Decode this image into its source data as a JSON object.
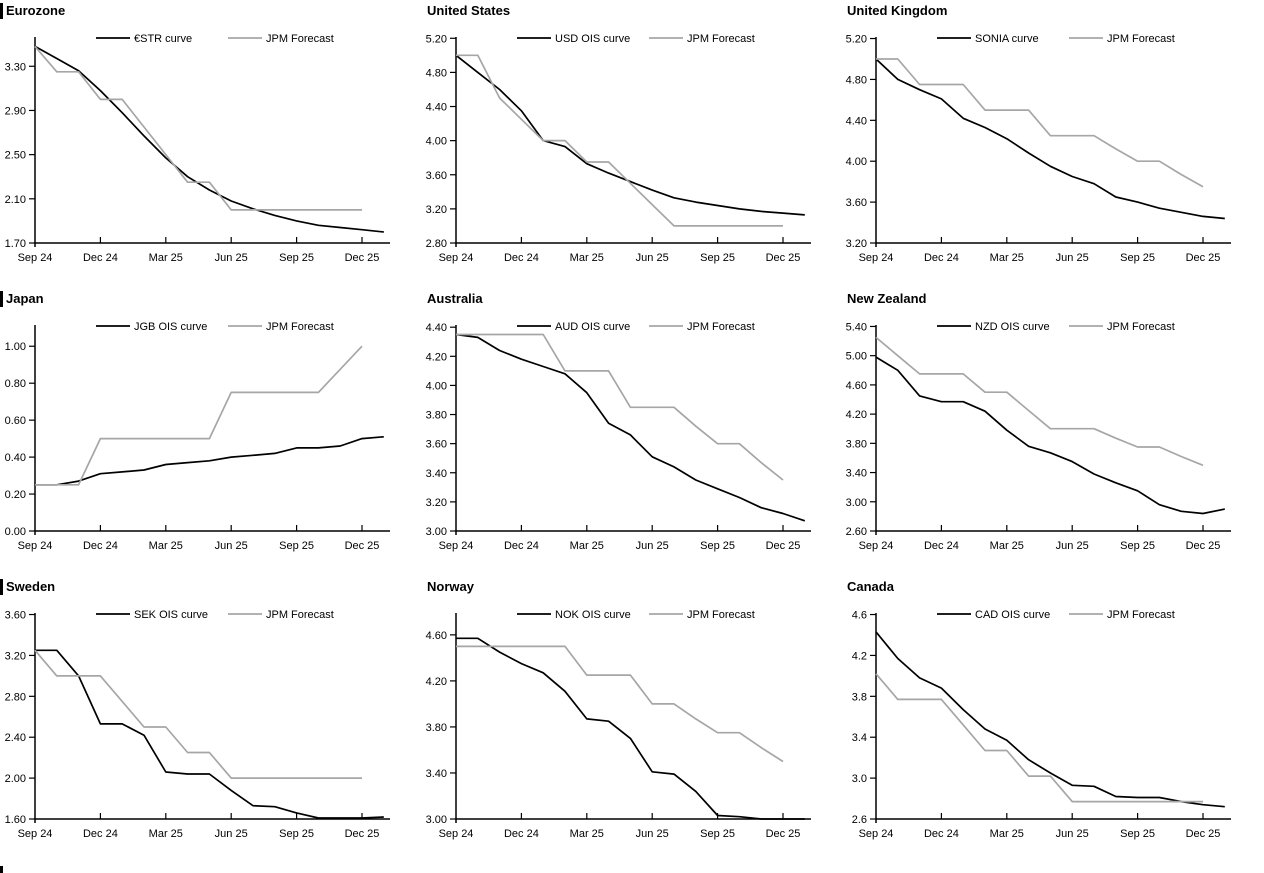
{
  "colors": {
    "market_curve": "#000000",
    "forecast": "#a6a6a6",
    "axis": "#000000"
  },
  "x_axis": {
    "tick_labels": [
      "Sep 24",
      "Dec 24",
      "Mar 25",
      "Jun 25",
      "Sep 25",
      "Dec 25"
    ],
    "tick_positions": [
      0,
      3,
      6,
      9,
      12,
      15
    ],
    "frequency": "monthly"
  },
  "chart_data": [
    {
      "type": "line",
      "title": "Eurozone",
      "section_bar": true,
      "x_tick_labels": [
        "Sep 24",
        "Dec 24",
        "Mar 25",
        "Jun 25",
        "Sep 25",
        "Dec 25"
      ],
      "x_tick_positions": [
        0,
        3,
        6,
        9,
        12,
        15
      ],
      "ylim": [
        1.7,
        3.565
      ],
      "ytick_values": [
        1.7,
        2.1,
        2.5,
        2.9,
        3.3
      ],
      "ytick_labels": [
        "1.70",
        "2.10",
        "2.50",
        "2.90",
        "3.30"
      ],
      "legend_position": "top",
      "series": [
        {
          "name": "€STR curve",
          "color": "#000000",
          "x_start_month": 0,
          "values": [
            3.48,
            3.37,
            3.26,
            3.08,
            2.88,
            2.67,
            2.47,
            2.3,
            2.18,
            2.08,
            2.01,
            1.95,
            1.9,
            1.86,
            1.84,
            1.82,
            1.8
          ]
        },
        {
          "name": "JPM Forecast",
          "color": "#a6a6a6",
          "x_start_month": 0,
          "values": [
            3.48,
            3.25,
            3.25,
            3.0,
            3.0,
            2.75,
            2.5,
            2.25,
            2.25,
            2.0,
            2.0,
            2.0,
            2.0,
            2.0,
            2.0,
            2.0
          ]
        }
      ]
    },
    {
      "type": "line",
      "title": "United States",
      "section_bar": false,
      "x_tick_labels": [
        "Sep 24",
        "Dec 24",
        "Mar 25",
        "Jun 25",
        "Sep 25",
        "Dec 25"
      ],
      "x_tick_positions": [
        0,
        3,
        6,
        9,
        12,
        15
      ],
      "ylim": [
        2.8,
        5.215
      ],
      "ytick_values": [
        2.8,
        3.2,
        3.6,
        4.0,
        4.4,
        4.8,
        5.2
      ],
      "ytick_labels": [
        "2.80",
        "3.20",
        "3.60",
        "4.00",
        "4.40",
        "4.80",
        "5.20"
      ],
      "legend_position": "top",
      "series": [
        {
          "name": "USD OIS curve",
          "color": "#000000",
          "x_start_month": 0,
          "values": [
            5.0,
            4.8,
            4.6,
            4.35,
            4.0,
            3.93,
            3.73,
            3.62,
            3.52,
            3.42,
            3.33,
            3.28,
            3.24,
            3.2,
            3.17,
            3.15,
            3.13
          ]
        },
        {
          "name": "JPM Forecast",
          "color": "#a6a6a6",
          "x_start_month": 0,
          "values": [
            5.0,
            5.0,
            4.5,
            4.25,
            4.0,
            4.0,
            3.75,
            3.75,
            3.5,
            3.25,
            3.0,
            3.0,
            3.0,
            3.0,
            3.0,
            3.0
          ]
        }
      ]
    },
    {
      "type": "line",
      "title": "United Kingdom",
      "section_bar": false,
      "x_tick_labels": [
        "Sep 24",
        "Dec 24",
        "Mar 25",
        "Jun 25",
        "Sep 25",
        "Dec 25"
      ],
      "x_tick_positions": [
        0,
        3,
        6,
        9,
        12,
        15
      ],
      "ylim": [
        3.2,
        5.215
      ],
      "ytick_values": [
        3.2,
        3.6,
        4.0,
        4.4,
        4.8,
        5.2
      ],
      "ytick_labels": [
        "3.20",
        "3.60",
        "4.00",
        "4.40",
        "4.80",
        "5.20"
      ],
      "legend_position": "top",
      "series": [
        {
          "name": "SONIA curve",
          "color": "#000000",
          "x_start_month": 0,
          "values": [
            5.0,
            4.8,
            4.7,
            4.61,
            4.42,
            4.33,
            4.22,
            4.08,
            3.95,
            3.85,
            3.78,
            3.65,
            3.6,
            3.54,
            3.5,
            3.46,
            3.44
          ]
        },
        {
          "name": "JPM Forecast",
          "color": "#a6a6a6",
          "x_start_month": 0,
          "values": [
            5.0,
            5.0,
            4.75,
            4.75,
            4.75,
            4.5,
            4.5,
            4.5,
            4.25,
            4.25,
            4.25,
            4.12,
            4.0,
            4.0,
            3.87,
            3.75
          ]
        }
      ]
    },
    {
      "type": "line",
      "title": "Japan",
      "section_bar": true,
      "x_tick_labels": [
        "Sep 24",
        "Dec 24",
        "Mar 25",
        "Jun 25",
        "Sep 25",
        "Dec 25"
      ],
      "x_tick_positions": [
        0,
        3,
        6,
        9,
        12,
        15
      ],
      "ylim": [
        0.0,
        1.115
      ],
      "ytick_values": [
        0.0,
        0.2,
        0.4,
        0.6,
        0.8,
        1.0
      ],
      "ytick_labels": [
        "0.00",
        "0.20",
        "0.40",
        "0.60",
        "0.80",
        "1.00"
      ],
      "legend_position": "top",
      "series": [
        {
          "name": "JGB OIS curve",
          "color": "#000000",
          "x_start_month": 0,
          "values": [
            0.25,
            0.25,
            0.27,
            0.31,
            0.32,
            0.33,
            0.36,
            0.37,
            0.38,
            0.4,
            0.41,
            0.42,
            0.45,
            0.45,
            0.46,
            0.5,
            0.51
          ]
        },
        {
          "name": "JPM Forecast",
          "color": "#a6a6a6",
          "x_start_month": 0,
          "values": [
            0.25,
            0.25,
            0.25,
            0.5,
            0.5,
            0.5,
            0.5,
            0.5,
            0.5,
            0.75,
            0.75,
            0.75,
            0.75,
            0.75,
            0.875,
            1.0
          ]
        }
      ]
    },
    {
      "type": "line",
      "title": "Australia",
      "section_bar": false,
      "x_tick_labels": [
        "Sep 24",
        "Dec 24",
        "Mar 25",
        "Jun 25",
        "Sep 25",
        "Dec 25"
      ],
      "x_tick_positions": [
        0,
        3,
        6,
        9,
        12,
        15
      ],
      "ylim": [
        3.0,
        4.415
      ],
      "ytick_values": [
        3.0,
        3.2,
        3.4,
        3.6,
        3.8,
        4.0,
        4.2,
        4.4
      ],
      "ytick_labels": [
        "3.00",
        "3.20",
        "3.40",
        "3.60",
        "3.80",
        "4.00",
        "4.20",
        "4.40"
      ],
      "legend_position": "top",
      "series": [
        {
          "name": "AUD OIS curve",
          "color": "#000000",
          "x_start_month": 0,
          "values": [
            4.35,
            4.33,
            4.24,
            4.18,
            4.13,
            4.08,
            3.95,
            3.74,
            3.66,
            3.51,
            3.44,
            3.35,
            3.29,
            3.23,
            3.16,
            3.12,
            3.07
          ]
        },
        {
          "name": "JPM Forecast",
          "color": "#a6a6a6",
          "x_start_month": 0,
          "values": [
            4.35,
            4.35,
            4.35,
            4.35,
            4.35,
            4.1,
            4.1,
            4.1,
            3.85,
            3.85,
            3.85,
            3.72,
            3.6,
            3.6,
            3.47,
            3.35
          ]
        }
      ]
    },
    {
      "type": "line",
      "title": "New Zealand",
      "section_bar": false,
      "x_tick_labels": [
        "Sep 24",
        "Dec 24",
        "Mar 25",
        "Jun 25",
        "Sep 25",
        "Dec 25"
      ],
      "x_tick_positions": [
        0,
        3,
        6,
        9,
        12,
        15
      ],
      "ylim": [
        2.6,
        5.42
      ],
      "ytick_values": [
        2.6,
        3.0,
        3.4,
        3.8,
        4.2,
        4.6,
        5.0,
        5.4
      ],
      "ytick_labels": [
        "2.60",
        "3.00",
        "3.40",
        "3.80",
        "4.20",
        "4.60",
        "5.00",
        "5.40"
      ],
      "legend_position": "top",
      "series": [
        {
          "name": "NZD OIS curve",
          "color": "#000000",
          "x_start_month": 0,
          "values": [
            4.98,
            4.8,
            4.45,
            4.37,
            4.37,
            4.24,
            3.98,
            3.76,
            3.67,
            3.55,
            3.38,
            3.26,
            3.15,
            2.96,
            2.87,
            2.84,
            2.9
          ]
        },
        {
          "name": "JPM Forecast",
          "color": "#a6a6a6",
          "x_start_month": 0,
          "values": [
            5.25,
            5.0,
            4.75,
            4.75,
            4.75,
            4.5,
            4.5,
            4.25,
            4.0,
            4.0,
            4.0,
            3.87,
            3.75,
            3.75,
            3.62,
            3.5
          ]
        }
      ]
    },
    {
      "type": "line",
      "title": "Sweden",
      "section_bar": true,
      "x_tick_labels": [
        "Sep 24",
        "Dec 24",
        "Mar 25",
        "Jun 25",
        "Sep 25",
        "Dec 25"
      ],
      "x_tick_positions": [
        0,
        3,
        6,
        9,
        12,
        15
      ],
      "ylim": [
        1.6,
        3.615
      ],
      "ytick_values": [
        1.6,
        2.0,
        2.4,
        2.8,
        3.2,
        3.6
      ],
      "ytick_labels": [
        "1.60",
        "2.00",
        "2.40",
        "2.80",
        "3.20",
        "3.60"
      ],
      "legend_position": "top",
      "series": [
        {
          "name": "SEK OIS curve",
          "color": "#000000",
          "x_start_month": 0,
          "values": [
            3.25,
            3.25,
            3.0,
            2.53,
            2.53,
            2.42,
            2.06,
            2.04,
            2.04,
            1.88,
            1.73,
            1.72,
            1.66,
            1.61,
            1.61,
            1.61,
            1.62
          ]
        },
        {
          "name": "JPM Forecast",
          "color": "#a6a6a6",
          "x_start_month": 0,
          "values": [
            3.25,
            3.0,
            3.0,
            3.0,
            2.75,
            2.5,
            2.5,
            2.25,
            2.25,
            2.0,
            2.0,
            2.0,
            2.0,
            2.0,
            2.0,
            2.0
          ]
        }
      ]
    },
    {
      "type": "line",
      "title": "Norway",
      "section_bar": false,
      "x_tick_labels": [
        "Sep 24",
        "Dec 24",
        "Mar 25",
        "Jun 25",
        "Sep 25",
        "Dec 25"
      ],
      "x_tick_positions": [
        0,
        3,
        6,
        9,
        12,
        15
      ],
      "ylim": [
        3.0,
        4.79
      ],
      "ytick_values": [
        3.0,
        3.4,
        3.8,
        4.2,
        4.6
      ],
      "ytick_labels": [
        "3.00",
        "3.40",
        "3.80",
        "4.20",
        "4.60"
      ],
      "legend_position": "top",
      "series": [
        {
          "name": "NOK OIS curve",
          "color": "#000000",
          "x_start_month": 0,
          "values": [
            4.57,
            4.57,
            4.45,
            4.35,
            4.27,
            4.11,
            3.87,
            3.85,
            3.7,
            3.41,
            3.39,
            3.24,
            3.03,
            3.02,
            3.0,
            3.0,
            3.0
          ]
        },
        {
          "name": "JPM Forecast",
          "color": "#a6a6a6",
          "x_start_month": 0,
          "values": [
            4.5,
            4.5,
            4.5,
            4.5,
            4.5,
            4.5,
            4.25,
            4.25,
            4.25,
            4.0,
            4.0,
            3.87,
            3.75,
            3.75,
            3.62,
            3.5
          ]
        }
      ]
    },
    {
      "type": "line",
      "title": "Canada",
      "section_bar": false,
      "x_tick_labels": [
        "Sep 24",
        "Dec 24",
        "Mar 25",
        "Jun 25",
        "Sep 25",
        "Dec 25"
      ],
      "x_tick_positions": [
        0,
        3,
        6,
        9,
        12,
        15
      ],
      "ylim": [
        2.6,
        4.615
      ],
      "ytick_values": [
        2.6,
        3.0,
        3.4,
        3.8,
        4.2,
        4.6
      ],
      "ytick_labels": [
        "2.6",
        "3.0",
        "3.4",
        "3.8",
        "4.2",
        "4.6"
      ],
      "legend_position": "top",
      "series": [
        {
          "name": "CAD OIS curve",
          "color": "#000000",
          "x_start_month": 0,
          "values": [
            4.43,
            4.17,
            3.98,
            3.88,
            3.67,
            3.48,
            3.37,
            3.18,
            3.05,
            2.93,
            2.92,
            2.82,
            2.81,
            2.81,
            2.77,
            2.74,
            2.72
          ]
        },
        {
          "name": "JPM Forecast",
          "color": "#a6a6a6",
          "x_start_month": 0,
          "values": [
            4.02,
            3.77,
            3.77,
            3.77,
            3.52,
            3.27,
            3.27,
            3.02,
            3.02,
            2.77,
            2.77,
            2.77,
            2.77,
            2.77,
            2.77,
            2.77
          ]
        }
      ]
    }
  ]
}
